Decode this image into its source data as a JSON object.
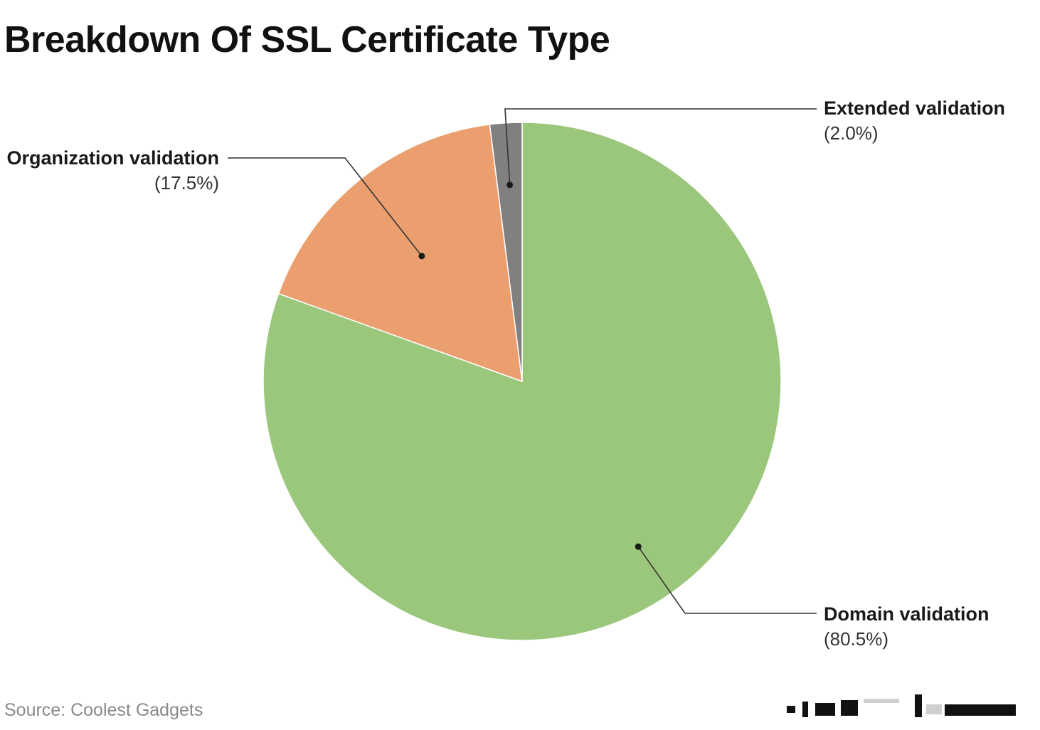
{
  "chart_data": {
    "type": "pie",
    "title": "Breakdown Of SSL Certificate Type",
    "source": "Source: Coolest Gadgets",
    "slices": [
      {
        "label": "Domain validation",
        "value": 80.5,
        "value_label": "(80.5%)",
        "color": "#9bc77d"
      },
      {
        "label": "Organization validation",
        "value": 17.5,
        "value_label": "(17.5%)",
        "color": "#eb9f6f"
      },
      {
        "label": "Extended validation",
        "value": 2.0,
        "value_label": "(2.0%)",
        "color": "#808080"
      }
    ],
    "start_angle": "12 o'clock",
    "direction": "clockwise",
    "labels": "outside, with leader lines"
  }
}
